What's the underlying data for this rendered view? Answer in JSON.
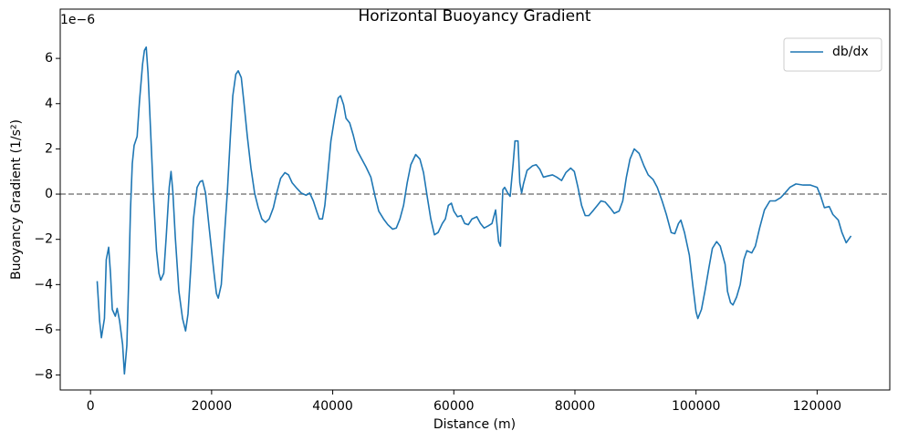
{
  "chart_data": {
    "type": "line",
    "title": "Horizontal Buoyancy Gradient",
    "x_label": "Distance (m)",
    "y_label": "Buoyancy Gradient (1/s²)",
    "y_offset_label": "1e−6",
    "x": [
      1100,
      1500,
      1800,
      2300,
      2600,
      3000,
      3300,
      3600,
      4100,
      4400,
      4800,
      5300,
      5600,
      6000,
      6300,
      6600,
      6900,
      7200,
      7700,
      8100,
      8600,
      8900,
      9200,
      9500,
      9900,
      10400,
      10900,
      11300,
      11600,
      12100,
      12500,
      13000,
      13300,
      13600,
      14000,
      14600,
      15200,
      15700,
      16100,
      16600,
      17000,
      17600,
      18100,
      18500,
      19000,
      19600,
      20400,
      20800,
      21100,
      21600,
      22000,
      22600,
      23100,
      23500,
      24000,
      24400,
      24900,
      25300,
      25900,
      26500,
      27100,
      27700,
      28300,
      28900,
      29500,
      30200,
      30800,
      31400,
      32100,
      32700,
      33300,
      34100,
      34800,
      35600,
      36200,
      36800,
      37400,
      37800,
      38300,
      38700,
      39200,
      39700,
      40300,
      40900,
      41300,
      41800,
      42200,
      42800,
      43400,
      44000,
      44800,
      45500,
      46300,
      47000,
      47600,
      48400,
      49100,
      49900,
      50500,
      51100,
      51700,
      52300,
      52900,
      53700,
      54400,
      55000,
      55600,
      56200,
      56800,
      57400,
      58100,
      58600,
      59100,
      59600,
      60000,
      60600,
      61200,
      61800,
      62400,
      63000,
      63800,
      64400,
      65000,
      65700,
      66300,
      66900,
      67400,
      67700,
      68100,
      68400,
      68900,
      69300,
      69800,
      70100,
      70600,
      70900,
      71200,
      71500,
      72100,
      73000,
      73600,
      74200,
      74800,
      75500,
      76300,
      77000,
      77800,
      78500,
      79300,
      79900,
      80500,
      81100,
      81700,
      82300,
      83100,
      83700,
      84300,
      85000,
      85800,
      86500,
      87300,
      87900,
      88500,
      89100,
      89800,
      90600,
      91400,
      92100,
      92900,
      93600,
      94400,
      95100,
      95900,
      96500,
      97100,
      97500,
      98100,
      98900,
      99500,
      100000,
      100300,
      100900,
      101500,
      102100,
      102700,
      103400,
      104000,
      104800,
      105200,
      105700,
      106100,
      106700,
      107300,
      107900,
      108400,
      109200,
      109800,
      110500,
      111300,
      112200,
      113100,
      114000,
      114700,
      115500,
      116500,
      117700,
      118900,
      120000,
      120600,
      121200,
      122000,
      122600,
      123500,
      124100,
      124800,
      125600
    ],
    "series": [
      {
        "name": "db/dx",
        "color": "#1f77b4",
        "values": [
          -3.85,
          -5.6,
          -6.35,
          -5.5,
          -2.9,
          -2.35,
          -3.5,
          -5.1,
          -5.4,
          -5.05,
          -5.6,
          -6.65,
          -7.95,
          -6.7,
          -3.9,
          -0.7,
          1.35,
          2.15,
          2.55,
          4.15,
          5.75,
          6.35,
          6.5,
          5.35,
          2.95,
          -0.1,
          -2.5,
          -3.5,
          -3.8,
          -3.5,
          -1.9,
          0.3,
          1.0,
          0.1,
          -1.9,
          -4.3,
          -5.5,
          -6.05,
          -5.3,
          -3.1,
          -1.1,
          0.3,
          0.55,
          0.6,
          0.05,
          -1.5,
          -3.5,
          -4.4,
          -4.6,
          -4.0,
          -2.3,
          0.1,
          2.55,
          4.35,
          5.3,
          5.45,
          5.15,
          4.15,
          2.55,
          1.15,
          0.05,
          -0.6,
          -1.1,
          -1.25,
          -1.1,
          -0.6,
          0.1,
          0.7,
          0.95,
          0.85,
          0.5,
          0.25,
          0.05,
          -0.05,
          0.05,
          -0.3,
          -0.8,
          -1.1,
          -1.1,
          -0.5,
          0.9,
          2.35,
          3.35,
          4.25,
          4.35,
          3.95,
          3.35,
          3.15,
          2.6,
          1.95,
          1.55,
          1.2,
          0.75,
          -0.1,
          -0.75,
          -1.1,
          -1.35,
          -1.55,
          -1.5,
          -1.1,
          -0.5,
          0.5,
          1.3,
          1.75,
          1.55,
          0.95,
          -0.1,
          -1.1,
          -1.8,
          -1.7,
          -1.3,
          -1.1,
          -0.5,
          -0.4,
          -0.75,
          -1.0,
          -0.95,
          -1.3,
          -1.35,
          -1.1,
          -1.0,
          -1.3,
          -1.5,
          -1.4,
          -1.3,
          -0.7,
          -2.1,
          -2.3,
          0.2,
          0.3,
          0.05,
          -0.1,
          1.35,
          2.35,
          2.35,
          0.5,
          0.05,
          0.45,
          1.05,
          1.25,
          1.3,
          1.1,
          0.75,
          0.8,
          0.85,
          0.75,
          0.6,
          0.95,
          1.15,
          1.0,
          0.3,
          -0.5,
          -0.95,
          -0.95,
          -0.7,
          -0.5,
          -0.3,
          -0.35,
          -0.6,
          -0.85,
          -0.75,
          -0.3,
          0.75,
          1.55,
          2.0,
          1.8,
          1.25,
          0.85,
          0.65,
          0.3,
          -0.3,
          -0.9,
          -1.7,
          -1.75,
          -1.3,
          -1.15,
          -1.7,
          -2.7,
          -4.1,
          -5.2,
          -5.5,
          -5.1,
          -4.25,
          -3.3,
          -2.4,
          -2.1,
          -2.3,
          -3.1,
          -4.3,
          -4.8,
          -4.9,
          -4.55,
          -4.0,
          -2.9,
          -2.5,
          -2.6,
          -2.3,
          -1.5,
          -0.7,
          -0.3,
          -0.3,
          -0.15,
          0.05,
          0.3,
          0.45,
          0.4,
          0.4,
          0.3,
          -0.1,
          -0.6,
          -0.55,
          -0.9,
          -1.15,
          -1.7,
          -2.15,
          -1.85
        ]
      }
    ],
    "reference_line": {
      "y": 0,
      "color": "#808080",
      "style": "dashed"
    },
    "xlim": [
      -5000,
      132000
    ],
    "ylim": [
      -8.66,
      8.18
    ],
    "xticks": [
      0,
      20000,
      40000,
      60000,
      80000,
      100000,
      120000
    ],
    "yticks": [
      {
        "value": -8,
        "label": "−8"
      },
      {
        "value": -6,
        "label": "−6"
      },
      {
        "value": -4,
        "label": "−4"
      },
      {
        "value": -2,
        "label": "−2"
      },
      0,
      2,
      4,
      6
    ],
    "legend": "upper right",
    "grid": false
  }
}
